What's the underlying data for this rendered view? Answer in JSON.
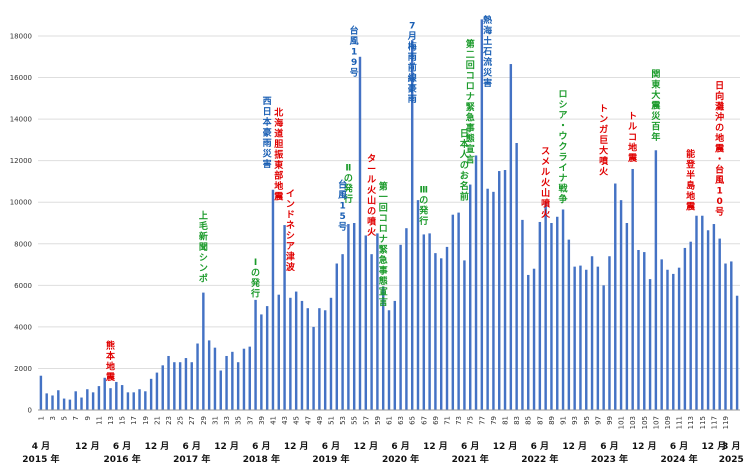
{
  "chart_data": {
    "type": "bar",
    "title": "",
    "xlabel": "",
    "ylabel": "",
    "ylim": [
      0,
      18000
    ],
    "yticks": [
      0,
      2000,
      4000,
      6000,
      8000,
      10000,
      12000,
      14000,
      16000,
      18000
    ],
    "grid": true,
    "bar_color": "#4472c4",
    "values": [
      1650,
      800,
      700,
      950,
      550,
      500,
      900,
      600,
      1000,
      850,
      1150,
      1550,
      1050,
      1350,
      1200,
      850,
      850,
      1000,
      900,
      1500,
      1800,
      2150,
      2600,
      2300,
      2300,
      2500,
      2300,
      3200,
      5650,
      3350,
      3000,
      1900,
      2600,
      2800,
      2300,
      2950,
      3050,
      5300,
      4600,
      5000,
      10600,
      5550,
      8900,
      5400,
      5700,
      5250,
      4900,
      4000,
      4900,
      4800,
      5400,
      7050,
      7500,
      8950,
      9000,
      17000,
      8400,
      7500,
      8500,
      5950,
      4800,
      5250,
      7950,
      8750,
      17800,
      10100,
      8450,
      8500,
      7550,
      7300,
      7850,
      9400,
      9500,
      7200,
      10850,
      12250,
      18800,
      10650,
      10500,
      11500,
      11550,
      16650,
      12850,
      9150,
      6500,
      6800,
      9050,
      10000,
      9000,
      9300,
      9650,
      8200,
      6900,
      6950,
      6750,
      7400,
      6900,
      6000,
      7400,
      10900,
      10100,
      9000,
      11600,
      7700,
      7600,
      6300,
      12500,
      7250,
      6750,
      6550,
      6850,
      7800,
      8100,
      9350,
      9350,
      8650,
      8950,
      8250,
      7050,
      7150,
      5500
    ],
    "x_tick_labels": [
      "1",
      "3",
      "5",
      "7",
      "9",
      "11",
      "13",
      "15",
      "17",
      "19",
      "21",
      "23",
      "25",
      "27",
      "29",
      "31",
      "33",
      "35",
      "37",
      "39",
      "41",
      "43",
      "45",
      "47",
      "49",
      "51",
      "53",
      "55",
      "57",
      "59",
      "61",
      "63",
      "65",
      "67",
      "69",
      "71",
      "73",
      "75",
      "77",
      "79",
      "81",
      "83",
      "85",
      "87",
      "89",
      "91",
      "93",
      "95",
      "97",
      "99",
      "101",
      "103",
      "105",
      "107",
      "109",
      "111",
      "113",
      "115",
      "117",
      "119"
    ],
    "period_labels": [
      {
        "index": 1,
        "month": "4 月",
        "year": "2015 年"
      },
      {
        "index": 9,
        "month": "12 月",
        "year": ""
      },
      {
        "index": 15,
        "month": "6 月",
        "year": "2016 年"
      },
      {
        "index": 21,
        "month": "12 月",
        "year": ""
      },
      {
        "index": 27,
        "month": "6 月",
        "year": "2017 年"
      },
      {
        "index": 33,
        "month": "12 月",
        "year": ""
      },
      {
        "index": 39,
        "month": "6 月",
        "year": "2018 年"
      },
      {
        "index": 45,
        "month": "12 月",
        "year": ""
      },
      {
        "index": 51,
        "month": "6 月",
        "year": "2019 年"
      },
      {
        "index": 57,
        "month": "12 月",
        "year": ""
      },
      {
        "index": 63,
        "month": "6 月",
        "year": "2020 年"
      },
      {
        "index": 69,
        "month": "12 月",
        "year": ""
      },
      {
        "index": 75,
        "month": "6 月",
        "year": "2021 年"
      },
      {
        "index": 81,
        "month": "12 月",
        "year": ""
      },
      {
        "index": 87,
        "month": "6 月",
        "year": "2022 年"
      },
      {
        "index": 93,
        "month": "12 月",
        "year": ""
      },
      {
        "index": 99,
        "month": "6 月",
        "year": "2023 年"
      },
      {
        "index": 105,
        "month": "12 月",
        "year": ""
      },
      {
        "index": 111,
        "month": "6 月",
        "year": "2024 年"
      },
      {
        "index": 117,
        "month": "12 月",
        "year": ""
      },
      {
        "index": 120,
        "month": "3 月",
        "year": "2025"
      }
    ],
    "annotations": [
      {
        "text": "熊本地震",
        "index": 13,
        "top_value": 3400,
        "color": "#e00000"
      },
      {
        "text": "上毛新聞シンポ",
        "index": 29,
        "top_value": 9650,
        "color": "#1a9a2a"
      },
      {
        "text": "Ⅰの発行",
        "index": 38,
        "top_value": 7400,
        "color": "#1a9a2a"
      },
      {
        "text": "西日本豪雨災害",
        "index": 40,
        "top_value": 15150,
        "color": "#1a5fb4"
      },
      {
        "text": "北海道胆振東部地震",
        "index": 42,
        "top_value": 14600,
        "color": "#e00000"
      },
      {
        "text": "インドネシア津波",
        "index": 44,
        "top_value": 10700,
        "color": "#e00000"
      },
      {
        "text": "台風19号",
        "index": 55,
        "top_value": 18550,
        "color": "#1a5fb4"
      },
      {
        "text": "Ⅱの発行",
        "index": 54,
        "top_value": 11950,
        "color": "#1a9a2a"
      },
      {
        "text": "台風15号",
        "index": 53,
        "top_value": 11150,
        "color": "#1a5fb4"
      },
      {
        "text": "タール火山の噴火",
        "index": 58,
        "top_value": 12400,
        "color": "#e00000"
      },
      {
        "text": "第一回コロナ緊急事態宣言",
        "index": 60,
        "top_value": 11050,
        "color": "#1a9a2a"
      },
      {
        "text": "7月梅雨前線豪雨",
        "index": 65,
        "top_value": 18800,
        "color": "#1a5fb4"
      },
      {
        "text": "Ⅲの発行",
        "index": 67,
        "top_value": 10900,
        "color": "#1a9a2a"
      },
      {
        "text": "日本人のお名前",
        "index": 74,
        "top_value": 13600,
        "color": "#1a9a2a"
      },
      {
        "text": "第二回コロナ緊急事態宣言",
        "index": 75,
        "top_value": 17900,
        "color": "#1a9a2a"
      },
      {
        "text": "熱海土石流災害",
        "index": 78,
        "top_value": 19050,
        "color": "#1a5fb4"
      },
      {
        "text": "スメル火山噴火",
        "index": 88,
        "top_value": 12750,
        "color": "#e00000"
      },
      {
        "text": "ロシア・ウクライナ戦争",
        "index": 91,
        "top_value": 15500,
        "color": "#1a9a2a"
      },
      {
        "text": "トンガ巨大噴火",
        "index": 98,
        "top_value": 14800,
        "color": "#e00000"
      },
      {
        "text": "トルコ地震",
        "index": 103,
        "top_value": 14450,
        "color": "#e00000"
      },
      {
        "text": "関東大震災百年",
        "index": 107,
        "top_value": 16450,
        "color": "#1a9a2a"
      },
      {
        "text": "能登半島地震",
        "index": 113,
        "top_value": 12600,
        "color": "#e00000"
      },
      {
        "text": "日向灘沖の地震・台風10号",
        "index": 118,
        "top_value": 15900,
        "color": "#e00000"
      }
    ]
  }
}
